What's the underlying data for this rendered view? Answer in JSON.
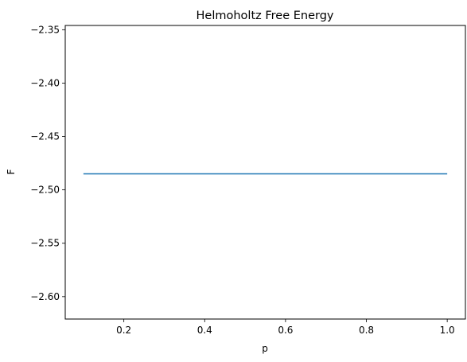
{
  "chart_data": {
    "type": "line",
    "title": "Helmoholtz Free Energy",
    "xlabel": "p",
    "ylabel": "F",
    "xlim": [
      0.055,
      1.045
    ],
    "ylim": [
      -2.621,
      -2.346
    ],
    "x_ticks": [
      0.2,
      0.4,
      0.6,
      0.8,
      1.0
    ],
    "x_tick_labels": [
      "0.2",
      "0.4",
      "0.6",
      "0.8",
      "1.0"
    ],
    "y_ticks": [
      -2.35,
      -2.4,
      -2.45,
      -2.5,
      -2.55,
      -2.6
    ],
    "y_tick_labels": [
      "−2.35",
      "−2.40",
      "−2.45",
      "−2.50",
      "−2.55",
      "−2.60"
    ],
    "grid": false,
    "series": [
      {
        "color": "#1f77b4",
        "x": [
          0.1,
          1.0
        ],
        "y": [
          -2.485,
          -2.485
        ]
      }
    ]
  }
}
